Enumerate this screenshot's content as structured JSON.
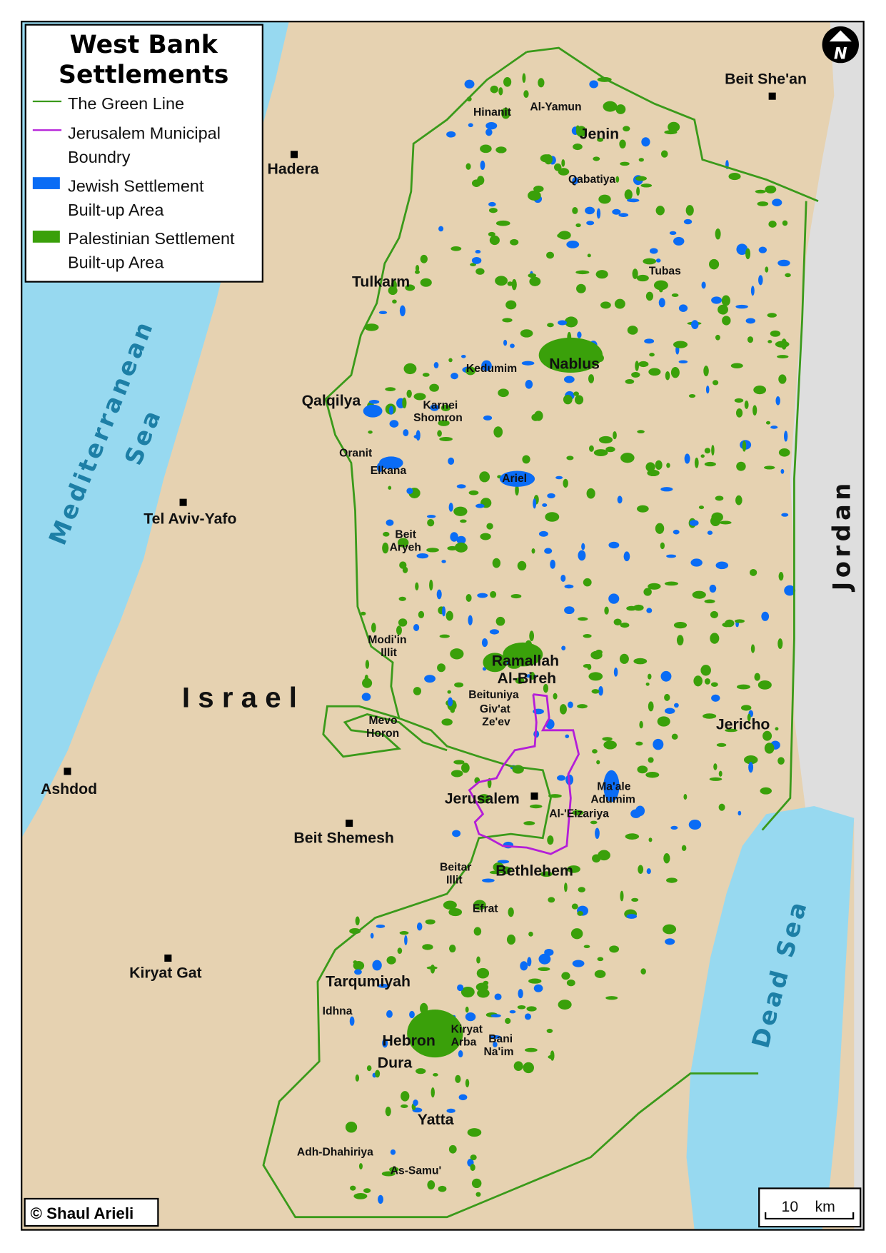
{
  "legend": {
    "title_line1": "West Bank",
    "title_line2": "Settlements",
    "items": [
      {
        "label1": "The Green Line",
        "label2": "",
        "symbol": "line",
        "color": "#3a9a1a"
      },
      {
        "label1": "Jerusalem Municipal",
        "label2": "Boundry",
        "symbol": "line",
        "color": "#b41ed8"
      },
      {
        "label1": "Jewish Settlement",
        "label2": "Built-up Area",
        "symbol": "box",
        "color": "#0a6cf5"
      },
      {
        "label1": "Palestinian Settlement",
        "label2": "Built-up Area",
        "symbol": "box",
        "color": "#3aa00a"
      }
    ]
  },
  "colors": {
    "sea": "#97d9f0",
    "land": "#e6d2b1",
    "jordan": "#dedede",
    "green_line": "#3a9a1a",
    "jerusalem_boundary": "#b41ed8",
    "jewish": "#0a6cf5",
    "palestinian": "#3aa00a"
  },
  "north_arrow": {
    "letter": "N",
    "icon": "north-arrow-icon"
  },
  "scale_bar": {
    "value": "10",
    "unit": "km"
  },
  "copyright": "© Shaul Arieli",
  "regions": {
    "israel": "Israel",
    "jordan": "Jordan",
    "mediterranean_line1": "Mediterranean",
    "mediterranean_line2": "Sea",
    "dead_sea": "Dead Sea"
  },
  "cities_israel": [
    "Hadera",
    "Tel Aviv-Yafo",
    "Ashdod",
    "Beit Shemesh",
    "Kiryat Gat",
    "Beit She'an"
  ],
  "cities_palestinian": [
    "Jenin",
    "Tulkarm",
    "Qalqilya",
    "Nablus",
    "Ramallah",
    "Al-Bireh",
    "Jericho",
    "Jerusalem",
    "Bethlehem",
    "Tarqumiyah",
    "Hebron",
    "Dura",
    "Yatta"
  ],
  "towns": [
    "Hinanit",
    "Al-Yamun",
    "Qabatiya",
    "Tubas",
    "Kedumim",
    "Karnei",
    "Shomron",
    "Oranit",
    "Elkana",
    "Ariel",
    "Beit",
    "Aryeh",
    "Modi'in",
    "Illit",
    "Beituniya",
    "Giv'at",
    "Ze'ev",
    "Mevo",
    "Horon",
    "Ma'ale",
    "Adumim",
    "Al-'Eizariya",
    "Beitar",
    "Illit",
    "Efrat",
    "Idhna",
    "Kiryat",
    "Arba",
    "Bani",
    "Na'im",
    "Adh-Dhahiriya",
    "As-Samu'"
  ]
}
